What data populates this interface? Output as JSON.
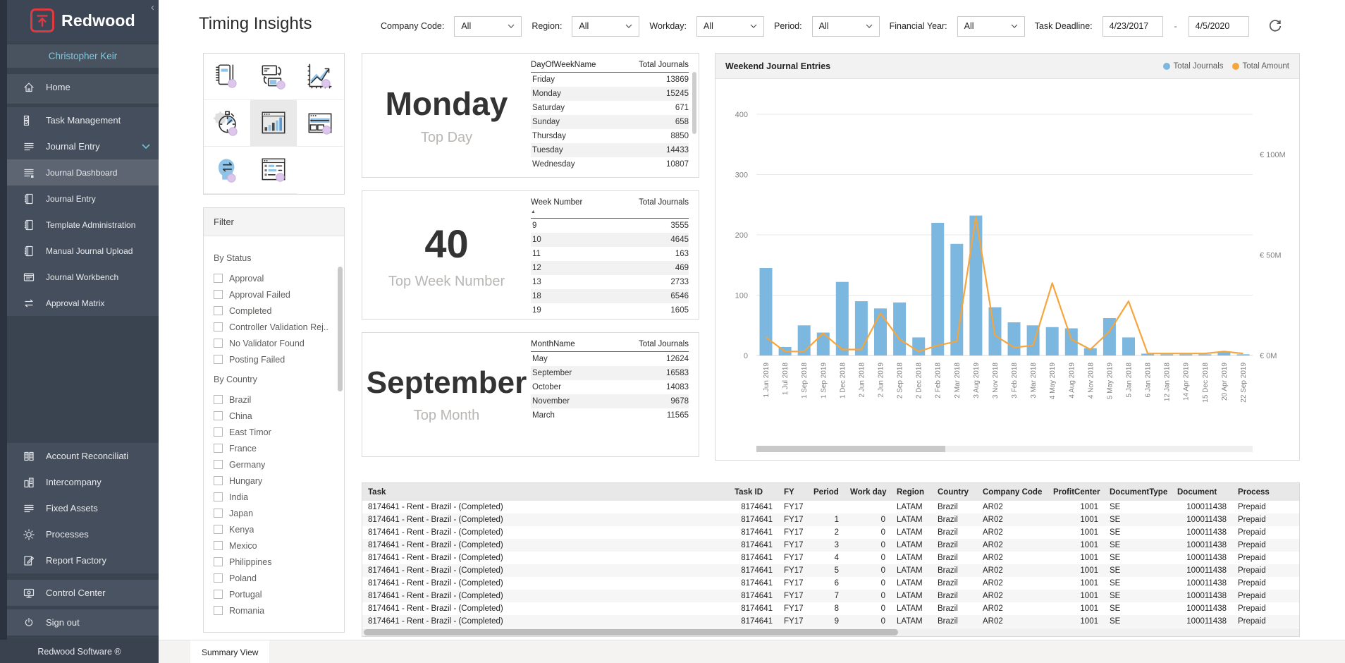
{
  "sidebar": {
    "brand": "Redwood",
    "user": "Christopher Keir",
    "collapse_icon": "chevron-left-icon",
    "home": {
      "label": "Home",
      "icon": "home"
    },
    "journal_group": [
      {
        "label": "Task Management",
        "icon": "tasks"
      },
      {
        "label": "Journal Entry",
        "icon": "journal",
        "expanded": true
      },
      {
        "label": "Journal Dashboard",
        "icon": "journal-dashboard",
        "selected": true,
        "sub": true
      },
      {
        "label": "Journal Entry",
        "icon": "book",
        "sub": true
      },
      {
        "label": "Template Administration",
        "icon": "book",
        "sub": true
      },
      {
        "label": "Manual Journal Upload",
        "icon": "book",
        "sub": true
      },
      {
        "label": "Journal Workbench",
        "icon": "workbench",
        "sub": true
      },
      {
        "label": "Approval Matrix",
        "icon": "swap",
        "sub": true
      }
    ],
    "secondary": [
      {
        "label": "Account Reconciliati",
        "icon": "recon"
      },
      {
        "label": "Intercompany",
        "icon": "buildings"
      },
      {
        "label": "Fixed Assets",
        "icon": "journal"
      },
      {
        "label": "Processes",
        "icon": "gear"
      },
      {
        "label": "Report Factory",
        "icon": "report"
      }
    ],
    "footer_items": [
      {
        "label": "Control Center",
        "icon": "monitor"
      },
      {
        "label": "Sign out",
        "icon": "power"
      }
    ],
    "copyright": "Redwood Software ®",
    "user_color": "#7fc9de",
    "brand_red": "#dd3a41"
  },
  "header": {
    "title": "Timing Insights",
    "filters": [
      {
        "label": "Company Code:",
        "value": "All"
      },
      {
        "label": "Region:",
        "value": "All"
      },
      {
        "label": "Workday:",
        "value": "All"
      },
      {
        "label": "Period:",
        "value": "All"
      },
      {
        "label": "Financial Year:",
        "value": "All"
      }
    ],
    "task_deadline": {
      "label": "Task Deadline:",
      "from": "4/23/2017",
      "to": "4/5/2020"
    },
    "refresh_icon": "refresh-icon"
  },
  "tiles": {
    "items": [
      "notebook-pen",
      "journal-exchange",
      "trend-chart",
      "stopwatch",
      "bar-chart",
      "report-browser",
      "head-arrows",
      "list-window"
    ],
    "selected": "bar-chart"
  },
  "filter_panel": {
    "title": "Filter",
    "sections": [
      {
        "title": "By Status",
        "options": [
          "Approval",
          "Approval Failed",
          "Completed",
          "Controller Validation Rej..",
          "No Validator Found",
          "Posting Failed"
        ]
      },
      {
        "title": "By Country",
        "options": [
          "Brazil",
          "China",
          "East Timor",
          "France",
          "Germany",
          "Hungary",
          "India",
          "Japan",
          "Kenya",
          "Mexico",
          "Philippines",
          "Poland",
          "Portugal",
          "Romania"
        ]
      }
    ]
  },
  "cards": [
    {
      "big": "Monday",
      "caption": "Top Day",
      "big_size": 46,
      "has_scrollbar": true,
      "table": {
        "headers": [
          "DayOfWeekName",
          "Total Journals"
        ],
        "rows": [
          [
            "Friday",
            "13869"
          ],
          [
            "Monday",
            "15245"
          ],
          [
            "Saturday",
            "671"
          ],
          [
            "Sunday",
            "658"
          ],
          [
            "Thursday",
            "8850"
          ],
          [
            "Tuesday",
            "14433"
          ],
          [
            "Wednesday",
            "10807"
          ]
        ]
      }
    },
    {
      "big": "40",
      "caption": "Top Week Number",
      "big_size": 56,
      "sorted": true,
      "table": {
        "headers": [
          "Week Number",
          "Total Journals"
        ],
        "rows": [
          [
            "9",
            "3555"
          ],
          [
            "10",
            "4645"
          ],
          [
            "11",
            "163"
          ],
          [
            "12",
            "469"
          ],
          [
            "13",
            "2733"
          ],
          [
            "18",
            "6546"
          ],
          [
            "19",
            "1605"
          ]
        ]
      }
    },
    {
      "big": "September",
      "caption": "Top Month",
      "big_size": 44,
      "table": {
        "headers": [
          "MonthName",
          "Total Journals"
        ],
        "rows": [
          [
            "May",
            "12624"
          ],
          [
            "September",
            "16583"
          ],
          [
            "October",
            "14083"
          ],
          [
            "November",
            "9678"
          ],
          [
            "March",
            "11565"
          ]
        ]
      }
    }
  ],
  "chart_data": {
    "type": "bar",
    "subtype": "combo-bar-line",
    "title": "Weekend Journal Entries",
    "categories": [
      "1 Jun 2019",
      "1 Jul 2018",
      "1 Sep 2018",
      "1 Sep 2019",
      "1 Dec 2018",
      "2 Jun 2018",
      "2 Jun 2019",
      "2 Sep 2018",
      "2 Dec 2018",
      "2 Feb 2018",
      "2 Mar 2018",
      "3 Aug 2019",
      "3 Nov 2018",
      "3 Feb 2018",
      "3 Mar 2018",
      "4 May 2019",
      "4 Aug 2019",
      "4 Nov 2018",
      "5 May 2019",
      "5 Jan 2018",
      "6 Jan 2018",
      "12 Jan 2018",
      "14 Apr 2019",
      "15 Dec 2018",
      "20 Apr 2019",
      "22 Sep 2019"
    ],
    "series": [
      {
        "name": "Total Journals",
        "type": "bar",
        "axis": "left",
        "color": "#7CB7DF",
        "values": [
          145,
          14,
          50,
          38,
          122,
          90,
          78,
          88,
          30,
          220,
          185,
          232,
          80,
          55,
          50,
          47,
          45,
          12,
          62,
          30,
          3,
          2,
          2,
          2,
          6,
          2
        ]
      },
      {
        "name": "Total Amount",
        "type": "line",
        "axis": "right",
        "color": "#F5A53B",
        "unit": "EUR millions",
        "values": [
          9,
          2,
          2,
          11,
          3,
          3,
          21,
          8,
          2,
          5,
          7,
          69,
          10,
          4,
          5,
          36,
          8,
          3,
          12,
          27,
          1,
          1,
          1,
          1,
          2,
          1
        ]
      }
    ],
    "left_axis": {
      "ticks": [
        0,
        100,
        200,
        300,
        400
      ],
      "max": 400
    },
    "right_axis": {
      "ticks": [
        {
          "value": 0,
          "label": "€ 0M"
        },
        {
          "value": 50,
          "label": "€ 50M"
        },
        {
          "value": 100,
          "label": "€ 100M"
        }
      ]
    },
    "legend_position": "top-right",
    "grid": true
  },
  "task_table": {
    "headers": [
      "Task",
      "Task ID",
      "FY",
      "Period",
      "Work day",
      "Region",
      "Country",
      "Company Code",
      "ProfitCenter",
      "DocumentType",
      "Document",
      "Process"
    ],
    "rows": [
      [
        "8174641 - Rent - Brazil - (Completed)",
        "8174641",
        "FY17",
        "",
        "",
        "LATAM",
        "Brazil",
        "AR02",
        "1001",
        "SE",
        "100011438",
        "Prepaid"
      ],
      [
        "8174641 - Rent - Brazil - (Completed)",
        "8174641",
        "FY17",
        "1",
        "0",
        "LATAM",
        "Brazil",
        "AR02",
        "1001",
        "SE",
        "100011438",
        "Prepaid"
      ],
      [
        "8174641 - Rent - Brazil - (Completed)",
        "8174641",
        "FY17",
        "2",
        "0",
        "LATAM",
        "Brazil",
        "AR02",
        "1001",
        "SE",
        "100011438",
        "Prepaid"
      ],
      [
        "8174641 - Rent - Brazil - (Completed)",
        "8174641",
        "FY17",
        "3",
        "0",
        "LATAM",
        "Brazil",
        "AR02",
        "1001",
        "SE",
        "100011438",
        "Prepaid"
      ],
      [
        "8174641 - Rent - Brazil - (Completed)",
        "8174641",
        "FY17",
        "4",
        "0",
        "LATAM",
        "Brazil",
        "AR02",
        "1001",
        "SE",
        "100011438",
        "Prepaid"
      ],
      [
        "8174641 - Rent - Brazil - (Completed)",
        "8174641",
        "FY17",
        "5",
        "0",
        "LATAM",
        "Brazil",
        "AR02",
        "1001",
        "SE",
        "100011438",
        "Prepaid"
      ],
      [
        "8174641 - Rent - Brazil - (Completed)",
        "8174641",
        "FY17",
        "6",
        "0",
        "LATAM",
        "Brazil",
        "AR02",
        "1001",
        "SE",
        "100011438",
        "Prepaid"
      ],
      [
        "8174641 - Rent - Brazil - (Completed)",
        "8174641",
        "FY17",
        "7",
        "0",
        "LATAM",
        "Brazil",
        "AR02",
        "1001",
        "SE",
        "100011438",
        "Prepaid"
      ],
      [
        "8174641 - Rent - Brazil - (Completed)",
        "8174641",
        "FY17",
        "8",
        "0",
        "LATAM",
        "Brazil",
        "AR02",
        "1001",
        "SE",
        "100011438",
        "Prepaid"
      ],
      [
        "8174641 - Rent - Brazil - (Completed)",
        "8174641",
        "FY17",
        "9",
        "0",
        "LATAM",
        "Brazil",
        "AR02",
        "1001",
        "SE",
        "100011438",
        "Prepaid"
      ]
    ]
  },
  "footer_bar": {
    "tab": "Summary View"
  }
}
